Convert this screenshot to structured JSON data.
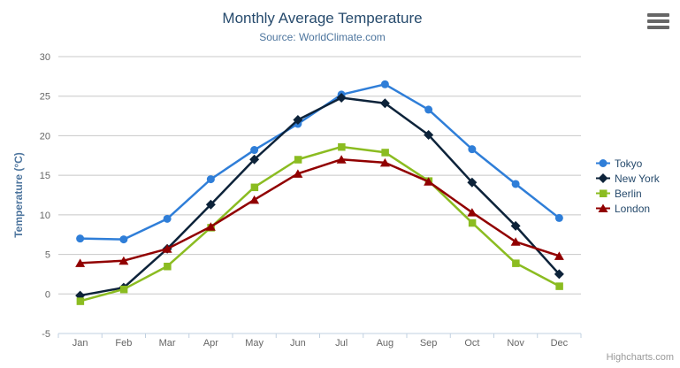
{
  "credits": "Highcharts.com",
  "icons": {
    "context_menu": "hamburger-icon"
  },
  "colors": {
    "title": "#274b6d",
    "subtitle": "#4d759e",
    "axis_title": "#4d759e",
    "tick_label": "#666666",
    "grid": "#c8c8c8",
    "axis_line": "#c0d0e0",
    "legend_text": "#274b6d",
    "credits": "#999999",
    "menu_icon": "#666666"
  },
  "chart_data": {
    "type": "line",
    "title": "Monthly Average Temperature",
    "subtitle": "Source: WorldClimate.com",
    "xlabel": "",
    "ylabel": "Temperature (°C)",
    "ylim": [
      -5,
      30
    ],
    "ytick_step": 5,
    "grid": true,
    "legend_position": "right",
    "categories": [
      "Jan",
      "Feb",
      "Mar",
      "Apr",
      "May",
      "Jun",
      "Jul",
      "Aug",
      "Sep",
      "Oct",
      "Nov",
      "Dec"
    ],
    "series": [
      {
        "name": "Tokyo",
        "color": "#2f7ed8",
        "marker": "circle",
        "values": [
          7.0,
          6.9,
          9.5,
          14.5,
          18.2,
          21.5,
          25.2,
          26.5,
          23.3,
          18.3,
          13.9,
          9.6
        ]
      },
      {
        "name": "New York",
        "color": "#0d233a",
        "marker": "diamond",
        "values": [
          -0.2,
          0.8,
          5.7,
          11.3,
          17.0,
          22.0,
          24.8,
          24.1,
          20.1,
          14.1,
          8.6,
          2.5
        ]
      },
      {
        "name": "Berlin",
        "color": "#8bbc21",
        "marker": "square",
        "values": [
          -0.9,
          0.6,
          3.5,
          8.4,
          13.5,
          17.0,
          18.6,
          17.9,
          14.3,
          9.0,
          3.9,
          1.0
        ]
      },
      {
        "name": "London",
        "color": "#910000",
        "marker": "triangle",
        "values": [
          3.9,
          4.2,
          5.7,
          8.5,
          11.9,
          15.2,
          17.0,
          16.6,
          14.2,
          10.3,
          6.6,
          4.8
        ]
      }
    ]
  }
}
